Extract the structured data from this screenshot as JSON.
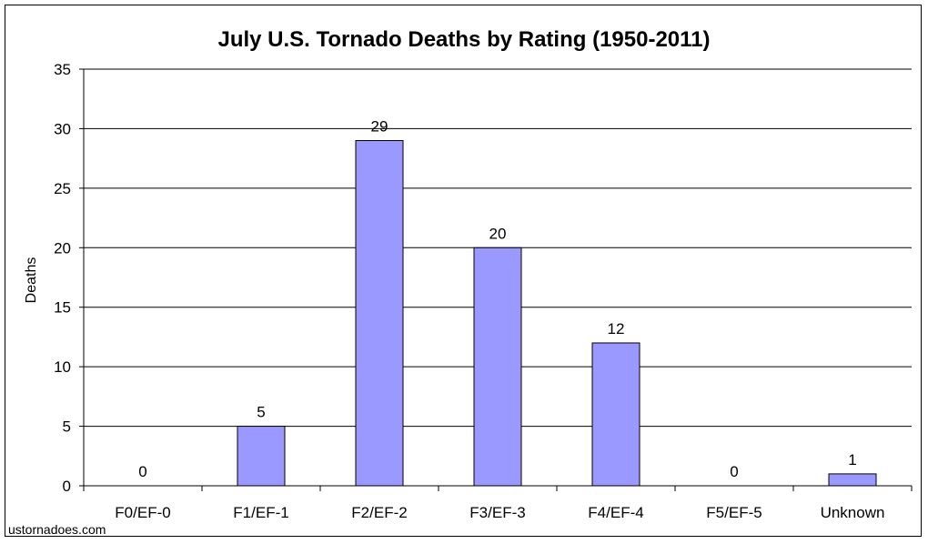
{
  "chart_data": {
    "type": "bar",
    "title": "July U.S. Tornado Deaths by Rating (1950-2011)",
    "xlabel": "",
    "ylabel": "Deaths",
    "categories": [
      "F0/EF-0",
      "F1/EF-1",
      "F2/EF-2",
      "F3/EF-3",
      "F4/EF-4",
      "F5/EF-5",
      "Unknown"
    ],
    "values": [
      0,
      5,
      29,
      20,
      12,
      0,
      1
    ],
    "ylim": [
      0,
      35
    ],
    "yticks": [
      0,
      5,
      10,
      15,
      20,
      25,
      30,
      35
    ],
    "grid": true,
    "bar_color": "#9999ff",
    "data_labels": true
  },
  "source_text": "ustornadoes.com"
}
